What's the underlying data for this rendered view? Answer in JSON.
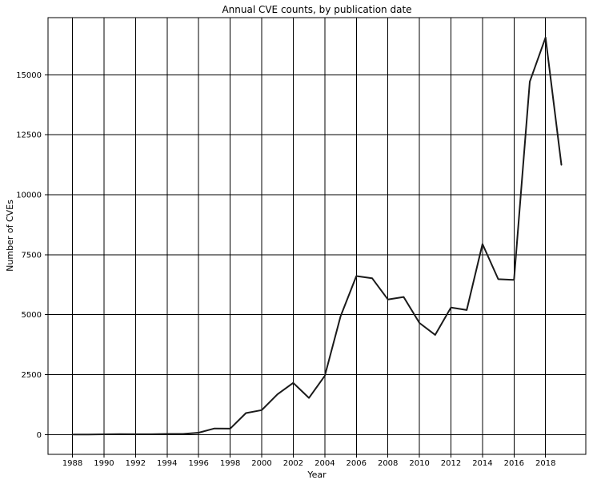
{
  "page": {
    "background": "#ffffff"
  },
  "chart_data": {
    "type": "line",
    "title": "Annual CVE counts, by publication date",
    "xlabel": "Year",
    "ylabel": "Number of CVEs",
    "x": [
      1988,
      1989,
      1990,
      1991,
      1992,
      1993,
      1994,
      1995,
      1996,
      1997,
      1998,
      1999,
      2000,
      2001,
      2002,
      2003,
      2004,
      2005,
      2006,
      2007,
      2008,
      2009,
      2010,
      2011,
      2012,
      2013,
      2014,
      2015,
      2016,
      2017,
      2018,
      2019
    ],
    "values": [
      2,
      3,
      11,
      15,
      13,
      13,
      25,
      25,
      75,
      252,
      246,
      894,
      1020,
      1677,
      2156,
      1527,
      2451,
      4935,
      6610,
      6520,
      5632,
      5736,
      4653,
      4155,
      5297,
      5191,
      7946,
      6480,
      6447,
      14714,
      16557,
      11250
    ],
    "xticks": [
      1988,
      1990,
      1992,
      1994,
      1996,
      1998,
      2000,
      2002,
      2004,
      2006,
      2008,
      2010,
      2012,
      2014,
      2016,
      2018
    ],
    "yticks": [
      0,
      2500,
      5000,
      7500,
      10000,
      12500,
      15000
    ],
    "xlim": [
      1986.45,
      2020.55
    ],
    "ylim": [
      -826,
      17385
    ],
    "grid": true,
    "legend": "none",
    "line_color": "#1a1a1a",
    "line_width": 2,
    "grid_color": "#000000",
    "frame_color": "#000000"
  }
}
